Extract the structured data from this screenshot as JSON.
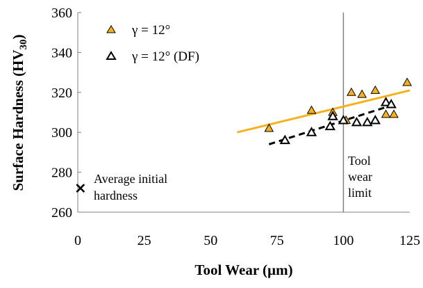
{
  "chart_data": {
    "type": "scatter",
    "xlabel": "Tool Wear (µm)",
    "ylabel_main": "Surface Hardness (HV",
    "ylabel_sub": "30",
    "ylabel_close": ")",
    "xlim": [
      0,
      125
    ],
    "ylim": [
      260,
      360
    ],
    "xticks": [
      "0",
      "25",
      "50",
      "75",
      "100",
      "125"
    ],
    "yticks": [
      "260",
      "280",
      "300",
      "320",
      "340",
      "360"
    ],
    "grid": false,
    "legend_position": "top-left",
    "colors": {
      "series_a": "#F5B21C",
      "series_b": "#000000",
      "reference_line": "#808080"
    },
    "series": [
      {
        "name": "γ = 12°",
        "marker": "filled-triangle",
        "points": [
          [
            72,
            302
          ],
          [
            88,
            311
          ],
          [
            96,
            310
          ],
          [
            101,
            306
          ],
          [
            103,
            320
          ],
          [
            107,
            319
          ],
          [
            112,
            321
          ],
          [
            116,
            309
          ],
          [
            119,
            309
          ],
          [
            124,
            325
          ]
        ],
        "trend": [
          [
            60,
            300
          ],
          [
            125,
            321
          ]
        ],
        "trend_style": "solid"
      },
      {
        "name": "γ = 12° (DF)",
        "marker": "hollow-triangle",
        "points": [
          [
            78,
            296
          ],
          [
            88,
            300
          ],
          [
            95,
            303
          ],
          [
            96,
            308
          ],
          [
            100,
            306
          ],
          [
            105,
            305
          ],
          [
            109,
            305
          ],
          [
            112,
            306
          ],
          [
            116,
            315
          ],
          [
            118,
            314
          ]
        ],
        "trend": [
          [
            72,
            294
          ],
          [
            117,
            313
          ]
        ],
        "trend_style": "dashed"
      }
    ],
    "reference": {
      "x": 100,
      "label_lines": [
        "Tool",
        "wear",
        "limit"
      ]
    },
    "initial_hardness": {
      "x": 1,
      "y": 272,
      "label_lines": [
        "Average initial",
        "hardness"
      ]
    }
  }
}
